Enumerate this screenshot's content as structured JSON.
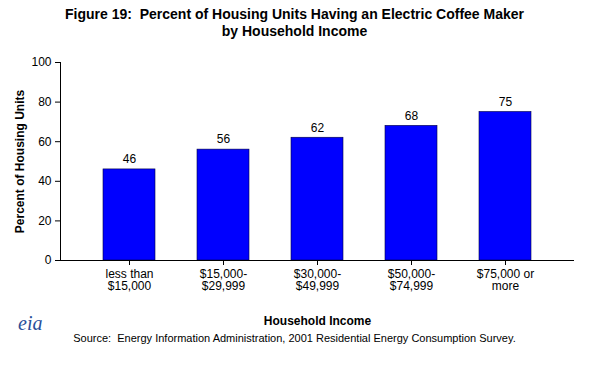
{
  "chart_data": {
    "type": "bar",
    "title": "Figure 19:  Percent of Housing Units Having an Electric Coffee Maker by Household Income",
    "x_label": "Household Income",
    "y_label": "Percent of Housing Units",
    "categories": [
      "less than $15,000",
      "$15,000-$29,999",
      "$30,000-$49,999",
      "$50,000-$74,999",
      "$75,000 or more"
    ],
    "values": [
      46,
      56,
      62,
      68,
      75
    ],
    "color": "#0000ff",
    "ylim": [
      0,
      100
    ],
    "yticks": [
      0,
      20,
      40,
      60,
      80,
      100
    ],
    "grid": false,
    "data_labels": true,
    "source": "Source:  Energy Information Administration, 2001 Residential Energy Consumption Survey.",
    "logo": "eia"
  }
}
